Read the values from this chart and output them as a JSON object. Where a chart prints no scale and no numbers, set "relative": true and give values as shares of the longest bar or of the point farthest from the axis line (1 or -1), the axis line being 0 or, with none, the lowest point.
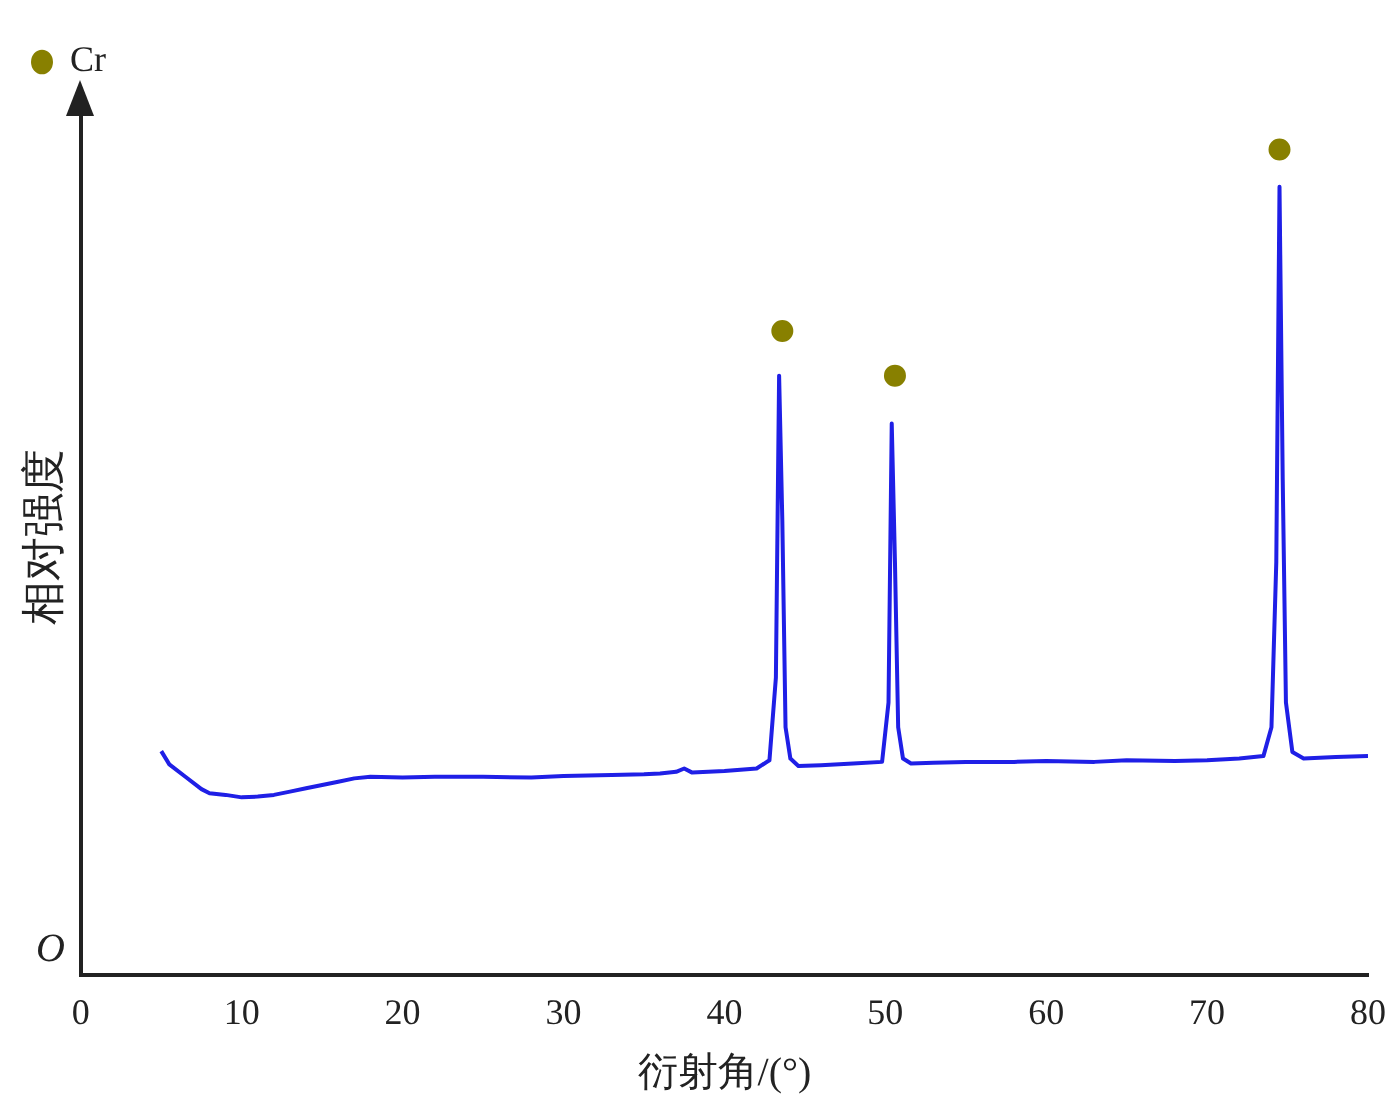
{
  "chart_data": {
    "type": "line",
    "xlabel": "衍射角/(°)",
    "ylabel": "相对强度",
    "relative": true,
    "xlim": [
      0,
      80
    ],
    "xticks": [
      0,
      10,
      20,
      30,
      40,
      50,
      60,
      70,
      80
    ],
    "grid": false,
    "legend": "top left",
    "annotations": [
      "O"
    ],
    "series": [
      {
        "type": "line",
        "color": "#1f1fe6",
        "marker": "none",
        "x": [
          5,
          5.5,
          6.5,
          7.5,
          8,
          9,
          10,
          11,
          12,
          13,
          14,
          15,
          16,
          17,
          18,
          20,
          22,
          25,
          28,
          30,
          33,
          35,
          36,
          37,
          37.5,
          38,
          40,
          42,
          42.8,
          43.2,
          43.4,
          43.6,
          43.8,
          44.1,
          44.6,
          46,
          48,
          49.8,
          50.2,
          50.4,
          50.6,
          50.8,
          51.1,
          51.6,
          53,
          55,
          58,
          60,
          63,
          65,
          68,
          70,
          72,
          73.5,
          74,
          74.3,
          74.5,
          74.7,
          74.9,
          75.3,
          76,
          78,
          80
        ],
        "values": [
          0.271,
          0.255,
          0.24,
          0.225,
          0.22,
          0.218,
          0.215,
          0.216,
          0.218,
          0.222,
          0.226,
          0.23,
          0.234,
          0.238,
          0.24,
          0.239,
          0.24,
          0.24,
          0.239,
          0.241,
          0.242,
          0.243,
          0.244,
          0.246,
          0.25,
          0.245,
          0.247,
          0.25,
          0.26,
          0.36,
          0.726,
          0.55,
          0.3,
          0.262,
          0.253,
          0.254,
          0.256,
          0.258,
          0.33,
          0.668,
          0.5,
          0.3,
          0.262,
          0.256,
          0.257,
          0.258,
          0.258,
          0.259,
          0.258,
          0.26,
          0.259,
          0.26,
          0.262,
          0.265,
          0.3,
          0.5,
          0.955,
          0.6,
          0.33,
          0.27,
          0.262,
          0.264,
          0.265
        ]
      },
      {
        "type": "scatter",
        "name": "Cr",
        "color": "#888000",
        "marker": "circle",
        "x": [
          43.6,
          50.6,
          74.5
        ],
        "values": [
          0.78,
          0.726,
          1.0
        ]
      }
    ]
  }
}
